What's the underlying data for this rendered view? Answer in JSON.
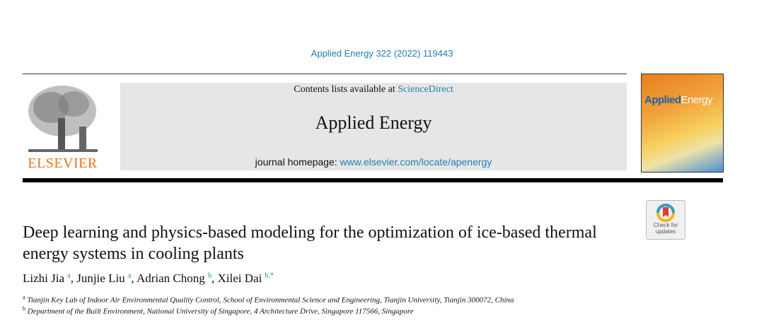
{
  "citation": "Applied Energy 322 (2022) 119443",
  "header": {
    "contents_prefix": "Contents lists available at ",
    "contents_link": "ScienceDirect",
    "journal_title": "Applied Energy",
    "homepage_prefix": "journal homepage: ",
    "homepage_link": "www.elsevier.com/locate/apenergy",
    "publisher_logo": "ELSEVIER",
    "cover_title_part1": "Applied",
    "cover_title_part2": "Energy"
  },
  "badge": {
    "label": "Check for updates",
    "icon": "check-for-updates-icon"
  },
  "article": {
    "title": "Deep learning and physics-based modeling for the optimization of ice-based thermal energy systems in cooling plants",
    "authors": [
      {
        "name": "Lizhi Jia",
        "sup": "a"
      },
      {
        "name": "Junjie Liu",
        "sup": "a"
      },
      {
        "name": "Adrian Chong",
        "sup": "b"
      },
      {
        "name": "Xilei Dai",
        "sup": "b,*"
      }
    ],
    "affiliations": [
      {
        "sup": "a",
        "text": "Tianjin Key Lab of Indoor Air Environmental Quality Control, School of Environmental Science and Engineering, Tianjin University, Tianjin 300072, China"
      },
      {
        "sup": "b",
        "text": "Department of the Built Environment, National University of Singapore, 4 Architecture Drive, Singapore 117566, Singapore"
      }
    ]
  }
}
